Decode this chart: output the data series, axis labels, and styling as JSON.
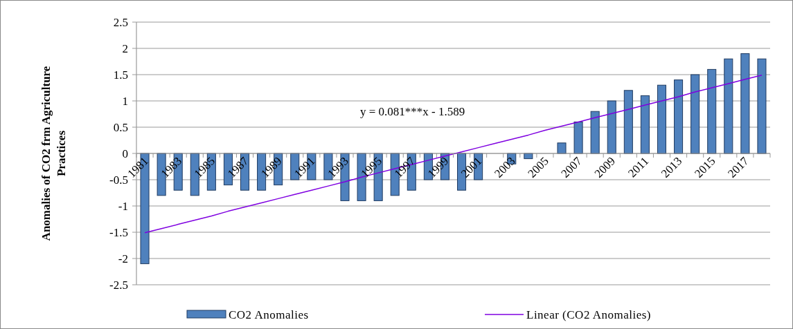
{
  "chart_data": {
    "type": "bar",
    "ylabel": "Anomalies of CO2 frm Agriculture Practices",
    "categories": [
      "1981",
      null,
      "1983",
      null,
      "1985",
      null,
      "1987",
      null,
      "1989",
      null,
      "1991",
      null,
      "1993",
      null,
      "1995",
      null,
      "1997",
      null,
      "1999",
      null,
      "2001",
      null,
      "2003",
      null,
      "2005",
      null,
      "2007",
      null,
      "2009",
      null,
      "2011",
      null,
      "2013",
      null,
      "2015",
      null,
      "2017",
      null
    ],
    "series": [
      {
        "name": "CO2 Anomalies",
        "color": "#4f81bd",
        "values": [
          -2.1,
          -0.8,
          -0.7,
          -0.8,
          -0.7,
          -0.6,
          -0.7,
          -0.7,
          -0.6,
          -0.5,
          -0.5,
          -0.5,
          -0.9,
          -0.9,
          -0.9,
          -0.8,
          -0.7,
          -0.5,
          -0.5,
          -0.7,
          -0.5,
          0,
          -0.2,
          -0.1,
          0,
          0.2,
          0.6,
          0.8,
          1.0,
          1.2,
          1.1,
          1.3,
          1.4,
          1.5,
          1.6,
          1.8,
          1.9,
          1.8
        ]
      },
      {
        "name": "Linear (CO2 Anomalies)",
        "type": "line",
        "color": "#7f00e0",
        "values": [
          -1.51,
          -1.43,
          -1.35,
          -1.27,
          -1.19,
          -1.1,
          -1.02,
          -0.94,
          -0.86,
          -0.78,
          -0.7,
          -0.62,
          -0.54,
          -0.45,
          -0.37,
          -0.29,
          -0.21,
          -0.13,
          -0.05,
          0.03,
          0.11,
          0.19,
          0.27,
          0.35,
          0.44,
          0.52,
          0.6,
          0.68,
          0.76,
          0.84,
          0.92,
          1.0,
          1.08,
          1.17,
          1.25,
          1.33,
          1.41,
          1.49
        ]
      }
    ],
    "ylim": [
      -2.5,
      2.5
    ],
    "yticks": [
      -2.5,
      -2,
      -1.5,
      -1,
      -0.5,
      0,
      0.5,
      1,
      1.5,
      2,
      2.5
    ],
    "grid": "y",
    "legend": "bottom",
    "annotations": [
      "y = 0.081***x - 1.589"
    ]
  }
}
